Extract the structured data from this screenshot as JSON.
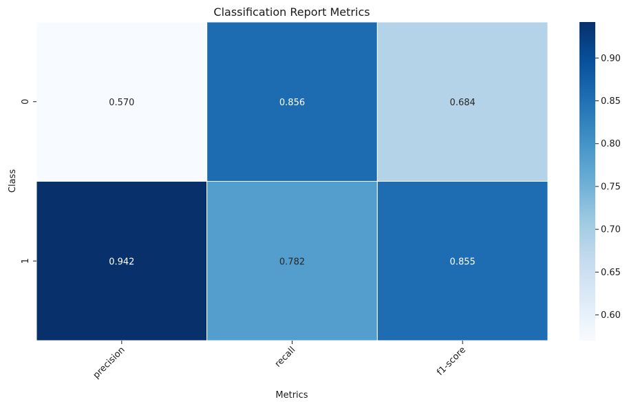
{
  "chart_data": {
    "type": "heatmap",
    "title": "Classification Report Metrics",
    "xlabel": "Metrics",
    "ylabel": "Class",
    "x_categories": [
      "precision",
      "recall",
      "f1-score"
    ],
    "y_categories": [
      "0",
      "1"
    ],
    "values": [
      [
        0.57,
        0.856,
        0.684
      ],
      [
        0.942,
        0.782,
        0.855
      ]
    ],
    "value_labels": [
      [
        "0.570",
        "0.856",
        "0.684"
      ],
      [
        "0.942",
        "0.782",
        "0.855"
      ]
    ],
    "colorscale": "Blues",
    "vmin": 0.57,
    "vmax": 0.942,
    "colorbar_ticks": [
      0.6,
      0.65,
      0.7,
      0.75,
      0.8,
      0.85,
      0.9
    ],
    "colorbar_tick_labels": [
      "0.60",
      "0.65",
      "0.70",
      "0.75",
      "0.80",
      "0.85",
      "0.90"
    ],
    "grid": false,
    "colorbar_position": "right"
  }
}
